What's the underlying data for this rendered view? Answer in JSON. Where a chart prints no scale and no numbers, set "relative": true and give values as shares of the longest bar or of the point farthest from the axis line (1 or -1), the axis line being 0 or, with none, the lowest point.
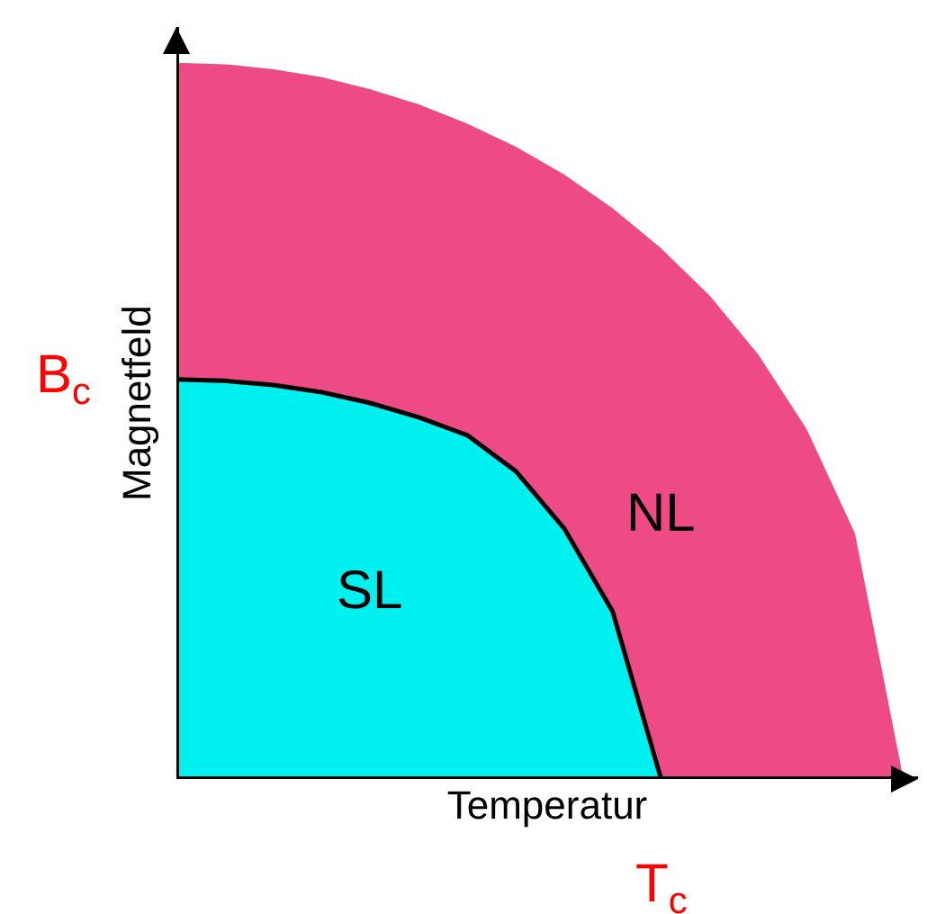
{
  "chart_data": {
    "type": "area",
    "relative": true,
    "xlabel": "Temperatur",
    "ylabel": "Magnetfeld",
    "categories": [
      null,
      null,
      null,
      null,
      null,
      null,
      null,
      null,
      null,
      null,
      null,
      null,
      null,
      null,
      null,
      null
    ],
    "series": [
      {
        "color": "#ee4a86",
        "values": [
          1,
          0.998,
          0.991,
          0.98,
          0.963,
          0.942,
          0.915,
          0.883,
          0.844,
          0.797,
          0.741,
          0.675,
          0.593,
          0.489,
          0.343,
          0
        ]
      },
      {
        "color": "#00f0f0",
        "values": [
          0.558,
          0.556,
          0.55,
          0.54,
          0.525,
          0.505,
          0.48,
          0.43,
          0.35,
          0.234,
          0,
          null,
          null,
          null,
          null,
          null
        ]
      }
    ],
    "annotations": [
      "NL",
      "SL",
      "B$_{c}$",
      "T$_{c}$"
    ]
  }
}
